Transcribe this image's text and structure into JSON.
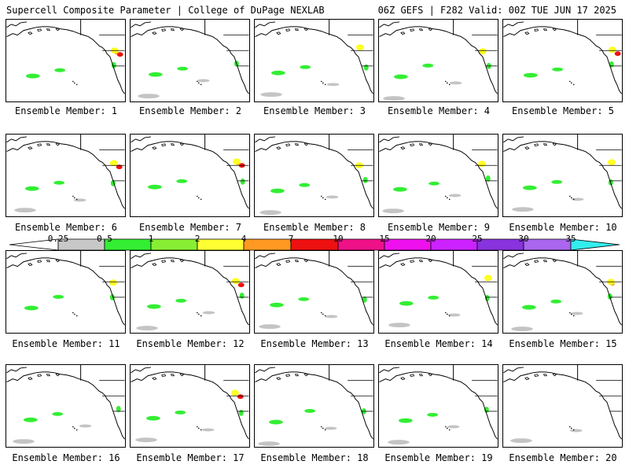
{
  "header": {
    "title": "Supercell Composite Parameter | College of DuPage NEXLAB",
    "run_info": "06Z GEFS | F282 Valid: 00Z TUE JUN 17 2025"
  },
  "panel_label_prefix": "Ensemble Member:",
  "members": [
    {
      "id": 1,
      "label": "Ensemble Member: 1",
      "intensity": "high",
      "patches": [
        "red",
        "orange",
        "yellow",
        "green"
      ]
    },
    {
      "id": 2,
      "label": "Ensemble Member: 2",
      "intensity": "low",
      "patches": [
        "green",
        "gray"
      ]
    },
    {
      "id": 3,
      "label": "Ensemble Member: 3",
      "intensity": "medium",
      "patches": [
        "yellow",
        "green",
        "gray"
      ]
    },
    {
      "id": 4,
      "label": "Ensemble Member: 4",
      "intensity": "medium",
      "patches": [
        "yellow",
        "green",
        "gray"
      ]
    },
    {
      "id": 5,
      "label": "Ensemble Member: 5",
      "intensity": "high",
      "patches": [
        "red",
        "yellow",
        "green"
      ]
    },
    {
      "id": 6,
      "label": "Ensemble Member: 6",
      "intensity": "high",
      "patches": [
        "red",
        "yellow",
        "green",
        "gray"
      ]
    },
    {
      "id": 7,
      "label": "Ensemble Member: 7",
      "intensity": "high",
      "patches": [
        "red",
        "orange",
        "yellow",
        "green"
      ]
    },
    {
      "id": 8,
      "label": "Ensemble Member: 8",
      "intensity": "medium",
      "patches": [
        "yellow",
        "green",
        "gray"
      ]
    },
    {
      "id": 9,
      "label": "Ensemble Member: 9",
      "intensity": "medium",
      "patches": [
        "yellow",
        "green",
        "gray"
      ]
    },
    {
      "id": 10,
      "label": "Ensemble Member: 10",
      "intensity": "medium",
      "patches": [
        "yellow",
        "green",
        "gray"
      ]
    },
    {
      "id": 11,
      "label": "Ensemble Member: 11",
      "intensity": "low",
      "patches": [
        "yellow",
        "green"
      ]
    },
    {
      "id": 12,
      "label": "Ensemble Member: 12",
      "intensity": "high",
      "patches": [
        "red",
        "yellow",
        "green",
        "gray"
      ]
    },
    {
      "id": 13,
      "label": "Ensemble Member: 13",
      "intensity": "low",
      "patches": [
        "green",
        "gray"
      ]
    },
    {
      "id": 14,
      "label": "Ensemble Member: 14",
      "intensity": "medium",
      "patches": [
        "yellow",
        "green",
        "gray"
      ]
    },
    {
      "id": 15,
      "label": "Ensemble Member: 15",
      "intensity": "medium",
      "patches": [
        "orange",
        "yellow",
        "green",
        "gray"
      ]
    },
    {
      "id": 16,
      "label": "Ensemble Member: 16",
      "intensity": "low",
      "patches": [
        "green",
        "gray"
      ]
    },
    {
      "id": 17,
      "label": "Ensemble Member: 17",
      "intensity": "high",
      "patches": [
        "red",
        "yellow",
        "green",
        "gray"
      ]
    },
    {
      "id": 18,
      "label": "Ensemble Member: 18",
      "intensity": "low",
      "patches": [
        "green",
        "gray"
      ]
    },
    {
      "id": 19,
      "label": "Ensemble Member: 19",
      "intensity": "low",
      "patches": [
        "green",
        "gray"
      ]
    },
    {
      "id": 20,
      "label": "Ensemble Member: 20",
      "intensity": "low",
      "patches": [
        "gray"
      ]
    }
  ],
  "colorbar": {
    "ticks": [
      "0.25",
      "0.5",
      "1",
      "2",
      "4",
      "7",
      "10",
      "15",
      "20",
      "25",
      "30",
      "35"
    ],
    "colors": [
      "#ffffff",
      "#c8c8c8",
      "#33ee33",
      "#88ee33",
      "#ffff33",
      "#ff9922",
      "#ee1111",
      "#ee1188",
      "#ee11ee",
      "#cc22ff",
      "#8833dd",
      "#aa66ee",
      "#33eeee"
    ]
  },
  "colors": {
    "gray": "#c4c4c4",
    "green": "#33ee33",
    "yellow": "#ffff22",
    "orange": "#ff9900",
    "red": "#ee1111",
    "coast": "#000000"
  }
}
